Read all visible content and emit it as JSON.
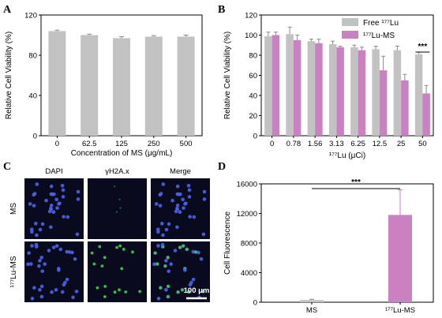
{
  "panels": {
    "a": {
      "letter": "A"
    },
    "b": {
      "letter": "B"
    },
    "c": {
      "letter": "C"
    },
    "d": {
      "letter": "D"
    }
  },
  "micrograph": {
    "columns": [
      "DAPI",
      "γH2A.x",
      "Merge"
    ],
    "rows": [
      "MS",
      "¹⁷⁷Lu-MS"
    ],
    "scale_bar": "100 μm",
    "colors": {
      "dapi": "#4d63e8",
      "h2ax": "#3fc44a",
      "background": "#0a0a1e"
    }
  },
  "colors": {
    "gray": "#c2c2c2",
    "magenta": "#c981c1",
    "error": "#8a8a8a"
  },
  "chart_data": [
    {
      "id": "A",
      "type": "bar",
      "title": "",
      "xlabel": "Concentration of MS (μg/mL)",
      "ylabel": "Relative Cell Viability (%)",
      "ylim": [
        0,
        120
      ],
      "yticks": [
        0,
        40,
        80,
        120
      ],
      "categories": [
        "0",
        "62.5",
        "125",
        "250",
        "500"
      ],
      "series": [
        {
          "values": [
            104,
            100,
            97,
            98.5,
            98.5
          ],
          "errors": [
            1,
            1,
            1.5,
            1,
            1.5
          ]
        }
      ]
    },
    {
      "id": "B",
      "type": "bar",
      "title": "",
      "xlabel": "¹⁷⁷Lu (μCi)",
      "ylabel": "Relative Cell Viability (%)",
      "ylim": [
        0,
        120
      ],
      "yticks": [
        0,
        20,
        40,
        60,
        80,
        100,
        120
      ],
      "categories": [
        "0",
        "0.78",
        "1.56",
        "3.13",
        "6.25",
        "12.5",
        "25",
        "50"
      ],
      "legend_position": "top-right",
      "series": [
        {
          "name": "Free ¹⁷⁷Lu",
          "values": [
            99,
            101,
            94,
            91,
            88,
            86,
            85,
            81
          ],
          "errors": [
            4,
            7,
            2,
            3,
            2,
            3,
            4,
            2
          ]
        },
        {
          "name": "¹⁷⁷Lu-MS",
          "values": [
            100,
            95,
            92,
            88,
            85,
            65,
            55,
            42
          ],
          "errors": [
            3,
            5,
            4,
            1,
            3,
            14,
            6,
            8
          ]
        }
      ],
      "annotations": [
        {
          "text": "***",
          "category": "50"
        }
      ]
    },
    {
      "id": "D",
      "type": "bar",
      "title": "",
      "xlabel": "",
      "ylabel": "Cell Fluorescence",
      "ylim": [
        0,
        16000
      ],
      "yticks": [
        0,
        4000,
        8000,
        12000,
        16000
      ],
      "categories": [
        "MS",
        "¹⁷⁷Lu-MS"
      ],
      "series": [
        {
          "values": [
            300,
            11800
          ],
          "errors": [
            100,
            3400
          ]
        }
      ],
      "annotations": [
        {
          "text": "***",
          "between": [
            "MS",
            "¹⁷⁷Lu-MS"
          ]
        }
      ]
    }
  ]
}
